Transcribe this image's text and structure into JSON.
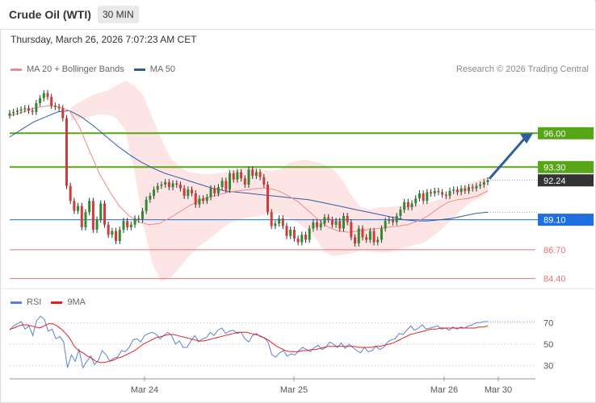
{
  "header": {
    "title": "Crude Oil (WTI)",
    "interval": "30 MIN",
    "datetime": "Thursday, March 26, 2026 7:07:23 AM CET"
  },
  "legend": {
    "ma20": "MA 20 + Bollinger Bands",
    "ma50": "MA 50",
    "rsi": "RSI",
    "rsi_ma": "9MA"
  },
  "credit": "Research © 2026 Trading Central",
  "colors": {
    "ma20": "#f08a88",
    "ma50": "#2f5d9e",
    "bollinger_fill": "#fde0e0",
    "resistance": "#56a617",
    "support": "#1f6fe0",
    "minor_support": "#f07070",
    "current": "#333333",
    "arrow": "#2f5d9e",
    "candle_up": "#2e8b2e",
    "candle_down": "#d23a3a",
    "rsi": "#5b7fd6",
    "rsi_ma": "#e02020"
  },
  "chart_data": [
    {
      "type": "candlestick",
      "x_axis": {
        "ticks": [
          "Mar 24",
          "Mar 25",
          "Mar 26",
          "Mar 30"
        ]
      },
      "y_range": [
        83.8,
        100.2
      ],
      "levels": [
        {
          "label": "96.00",
          "value": 96.0,
          "role": "resistance"
        },
        {
          "label": "93.30",
          "value": 93.3,
          "role": "resistance"
        },
        {
          "label": "92.24",
          "value": 92.24,
          "role": "current"
        },
        {
          "label": "89.10",
          "value": 89.1,
          "role": "support"
        },
        {
          "label": "86.70",
          "value": 86.7,
          "role": "minor-support"
        },
        {
          "label": "84.40",
          "value": 84.4,
          "role": "minor-support"
        }
      ],
      "close_series": [
        97.6,
        97.7,
        97.8,
        97.9,
        98.0,
        97.8,
        97.7,
        98.4,
        98.8,
        99.2,
        98.9,
        98.2,
        98.1,
        98.0,
        97.2,
        91.8,
        90.6,
        89.8,
        90.2,
        88.5,
        89.7,
        90.6,
        88.3,
        89.1,
        90.4,
        88.7,
        87.9,
        88.2,
        87.4,
        88.3,
        89.0,
        88.5,
        88.7,
        89.2,
        89.1,
        89.8,
        90.7,
        91.0,
        91.5,
        91.8,
        91.9,
        92.1,
        91.7,
        92.0,
        91.9,
        91.6,
        91.0,
        91.5,
        91.2,
        90.3,
        90.8,
        90.6,
        90.9,
        91.6,
        91.2,
        91.7,
        92.2,
        91.5,
        92.8,
        92.3,
        92.9,
        92.4,
        91.9,
        93.1,
        92.6,
        92.9,
        92.5,
        91.9,
        89.7,
        88.6,
        88.8,
        89.2,
        88.6,
        87.8,
        88.3,
        87.6,
        87.3,
        87.9,
        87.5,
        88.4,
        88.9,
        88.5,
        88.8,
        89.3,
        89.1,
        88.7,
        89.0,
        88.4,
        89.4,
        88.9,
        87.7,
        87.2,
        88.4,
        87.7,
        87.5,
        88.2,
        87.3,
        87.5,
        88.4,
        89.0,
        89.1,
        88.9,
        89.4,
        89.9,
        90.5,
        90.1,
        90.4,
        90.8,
        91.2,
        90.6,
        91.3,
        91.2,
        91.4,
        91.3,
        91.1,
        91.0,
        91.4,
        91.5,
        91.3,
        91.6,
        91.4,
        91.7,
        91.6,
        91.8,
        91.9,
        92.1,
        92.24
      ],
      "ma20": [
        97.4,
        97.6,
        97.9,
        98.1,
        98.2,
        98.1,
        97.8,
        96.5,
        94.6,
        92.8,
        91.4,
        90.2,
        89.4,
        88.9,
        88.7,
        88.8,
        89.2,
        89.7,
        90.2,
        90.6,
        90.9,
        91.1,
        91.3,
        91.4,
        91.5,
        91.6,
        91.6,
        91.4,
        91.0,
        90.5,
        89.8,
        89.1,
        88.5,
        88.2,
        88.1,
        88.2,
        88.3,
        88.4,
        88.5,
        88.6,
        88.7,
        89.0,
        89.4,
        90.0,
        90.5,
        90.7,
        90.8,
        91.0,
        91.4
      ],
      "ma50": [
        95.7,
        96.3,
        96.9,
        97.3,
        97.7,
        97.8,
        97.3,
        96.6,
        95.8,
        95.0,
        94.3,
        93.7,
        93.2,
        92.8,
        92.5,
        92.2,
        91.9,
        91.6,
        91.4,
        91.3,
        91.2,
        91.1,
        91.0,
        90.9,
        90.8,
        90.7,
        90.5,
        90.3,
        90.1,
        89.9,
        89.7,
        89.5,
        89.3,
        89.1,
        89.0,
        89.0,
        89.1,
        89.2,
        89.4,
        89.6,
        89.7
      ],
      "bollinger_upper": [
        98.1,
        98.5,
        98.9,
        99.2,
        99.4,
        99.8,
        100.2,
        99.8,
        99.0,
        97.2,
        95.5,
        94.0,
        93.3,
        92.9,
        92.8,
        92.7,
        92.8,
        92.9,
        93.0,
        93.2,
        93.3,
        93.1,
        93.0,
        93.1,
        93.6,
        93.8,
        93.9,
        93.7,
        93.5,
        93.1,
        92.2,
        91.0,
        90.1,
        89.9,
        90.1,
        90.1,
        90.2,
        90.2,
        90.3,
        90.4,
        90.6,
        90.8,
        91.2,
        91.6,
        92.0,
        92.3,
        92.5
      ],
      "bollinger_lower": [
        97.0,
        97.1,
        97.3,
        97.5,
        97.5,
        97.2,
        96.2,
        93.0,
        88.6,
        85.5,
        84.2,
        84.5,
        85.3,
        86.2,
        86.9,
        87.4,
        88.0,
        88.6,
        89.0,
        89.2,
        89.3,
        89.4,
        89.6,
        89.5,
        89.2,
        88.9,
        88.3,
        87.6,
        86.5,
        86.2,
        86.3,
        86.4,
        86.7,
        86.6,
        86.5,
        86.5,
        86.7,
        86.9,
        87.1,
        87.3,
        87.8,
        88.4,
        89.1,
        89.8,
        90.4,
        90.8,
        91.2
      ],
      "forecast_arrow": {
        "from": 92.24,
        "to": 96.0
      }
    },
    {
      "type": "line",
      "name": "RSI",
      "y_ticks": [
        70,
        50,
        30
      ],
      "y_range": [
        20,
        80
      ],
      "rsi": [
        63,
        67,
        69,
        71,
        64,
        67,
        58,
        72,
        76,
        73,
        62,
        64,
        55,
        57,
        52,
        28,
        40,
        34,
        45,
        28,
        34,
        39,
        31,
        35,
        44,
        40,
        34,
        37,
        38,
        44,
        43,
        47,
        54,
        55,
        52,
        58,
        60,
        61,
        59,
        55,
        58,
        61,
        58,
        50,
        53,
        47,
        47,
        53,
        58,
        52,
        55,
        56,
        61,
        58,
        63,
        65,
        60,
        62,
        63,
        60,
        61,
        55,
        52,
        58,
        60,
        57,
        56,
        52,
        40,
        38,
        42,
        44,
        39,
        41,
        40,
        44,
        47,
        45,
        43,
        47,
        49,
        45,
        47,
        52,
        50,
        47,
        51,
        46,
        50,
        47,
        44,
        42,
        47,
        43,
        44,
        48,
        45,
        47,
        52,
        54,
        55,
        60,
        59,
        63,
        67,
        63,
        65,
        68,
        64,
        65,
        66,
        67,
        64,
        65,
        63,
        66,
        64,
        66,
        65,
        67,
        68,
        70,
        70,
        71,
        71
      ],
      "rsi_ma": [
        64,
        65,
        67,
        68,
        68,
        67,
        66,
        65,
        67,
        69,
        69,
        67,
        64,
        60,
        55,
        48,
        44,
        42,
        39,
        37,
        34,
        33,
        33,
        34,
        35,
        37,
        38,
        40,
        42,
        44,
        47,
        50,
        52,
        54,
        56,
        57,
        58,
        59,
        59,
        58,
        57,
        56,
        55,
        54,
        53,
        53,
        54,
        55,
        56,
        57,
        58,
        59,
        60,
        61,
        61,
        61,
        60,
        59,
        58,
        56,
        54,
        51,
        48,
        46,
        44,
        43,
        43,
        43,
        44,
        44,
        45,
        45,
        46,
        47,
        48,
        48,
        48,
        48,
        48,
        48,
        48,
        47,
        47,
        47,
        47,
        48,
        48,
        49,
        50,
        51,
        53,
        55,
        57,
        59,
        60,
        61,
        62,
        63,
        64,
        64,
        65,
        65,
        65,
        65,
        65,
        65,
        65,
        65,
        65,
        66,
        66,
        67
      ]
    }
  ]
}
